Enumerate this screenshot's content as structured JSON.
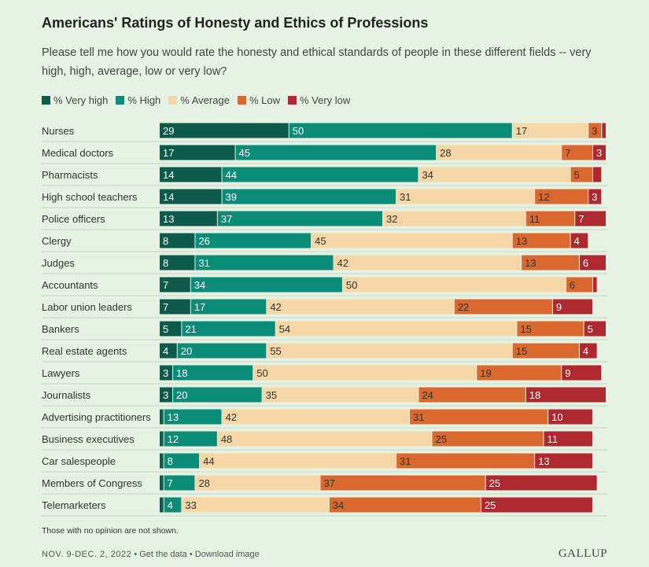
{
  "header": {
    "title": "Americans' Ratings of Honesty and Ethics of Professions",
    "subtitle": "Please tell me how you would rate the honesty and ethical standards of people in these different fields -- very high, high, average, low or very low?"
  },
  "legend": [
    {
      "label": "% Very high",
      "color": "#0b5a4a"
    },
    {
      "label": "% High",
      "color": "#0a8c78"
    },
    {
      "label": "% Average",
      "color": "#f5d6a6"
    },
    {
      "label": "% Low",
      "color": "#d9692f"
    },
    {
      "label": "% Very low",
      "color": "#b0282f"
    }
  ],
  "chart_data": {
    "type": "bar",
    "orientation": "horizontal",
    "stacked": true,
    "categories": [
      "Nurses",
      "Medical doctors",
      "Pharmacists",
      "High school teachers",
      "Police officers",
      "Clergy",
      "Judges",
      "Accountants",
      "Labor union leaders",
      "Bankers",
      "Real estate agents",
      "Lawyers",
      "Journalists",
      "Advertising practitioners",
      "Business executives",
      "Car salespeople",
      "Members of Congress",
      "Telemarketers"
    ],
    "series": [
      {
        "name": "% Very high",
        "color": "#0b5a4a",
        "values": [
          29,
          17,
          14,
          14,
          13,
          8,
          8,
          7,
          7,
          5,
          4,
          3,
          3,
          1,
          1,
          1,
          1,
          1
        ]
      },
      {
        "name": "% High",
        "color": "#0a8c78",
        "values": [
          50,
          45,
          44,
          39,
          37,
          26,
          31,
          34,
          17,
          21,
          20,
          18,
          20,
          13,
          12,
          8,
          7,
          4
        ]
      },
      {
        "name": "% Average",
        "color": "#f5d6a6",
        "values": [
          17,
          28,
          34,
          31,
          32,
          45,
          42,
          50,
          42,
          54,
          55,
          50,
          35,
          42,
          48,
          44,
          28,
          33
        ]
      },
      {
        "name": "% Low",
        "color": "#d9692f",
        "values": [
          3,
          7,
          5,
          12,
          11,
          13,
          13,
          6,
          22,
          15,
          15,
          19,
          24,
          31,
          25,
          31,
          37,
          34
        ]
      },
      {
        "name": "% Very low",
        "color": "#b0282f",
        "values": [
          1,
          3,
          2,
          3,
          7,
          4,
          6,
          1,
          9,
          5,
          4,
          9,
          18,
          10,
          11,
          13,
          25,
          25
        ]
      }
    ],
    "labels": [
      [
        "29",
        "50",
        "17",
        "3",
        ""
      ],
      [
        "17",
        "45",
        "28",
        "7",
        "3"
      ],
      [
        "14",
        "44",
        "34",
        "5",
        ""
      ],
      [
        "14",
        "39",
        "31",
        "12",
        "3"
      ],
      [
        "13",
        "37",
        "32",
        "11",
        "7"
      ],
      [
        "8",
        "26",
        "45",
        "13",
        "4"
      ],
      [
        "8",
        "31",
        "42",
        "13",
        "6"
      ],
      [
        "7",
        "34",
        "50",
        "6",
        ""
      ],
      [
        "7",
        "17",
        "42",
        "22",
        "9"
      ],
      [
        "5",
        "21",
        "54",
        "15",
        "5"
      ],
      [
        "4",
        "20",
        "55",
        "15",
        "4"
      ],
      [
        "3",
        "18",
        "50",
        "19",
        "9"
      ],
      [
        "3",
        "20",
        "35",
        "24",
        "18"
      ],
      [
        "",
        "13",
        "42",
        "31",
        "10"
      ],
      [
        "",
        "12",
        "48",
        "25",
        "11"
      ],
      [
        "",
        "8",
        "44",
        "31",
        "13"
      ],
      [
        "",
        "7",
        "28",
        "37",
        "25"
      ],
      [
        "",
        "4",
        "33",
        "34",
        "25"
      ]
    ],
    "xlim": [
      0,
      100
    ],
    "grid": false,
    "legend_position": "top-left"
  },
  "footnote": "Those with no opinion are not shown.",
  "footer": {
    "date": "NOV. 9-DEC. 2, 2022",
    "sep": "•",
    "get_data": "Get the data",
    "download": "Download image"
  },
  "brand": "GALLUP"
}
